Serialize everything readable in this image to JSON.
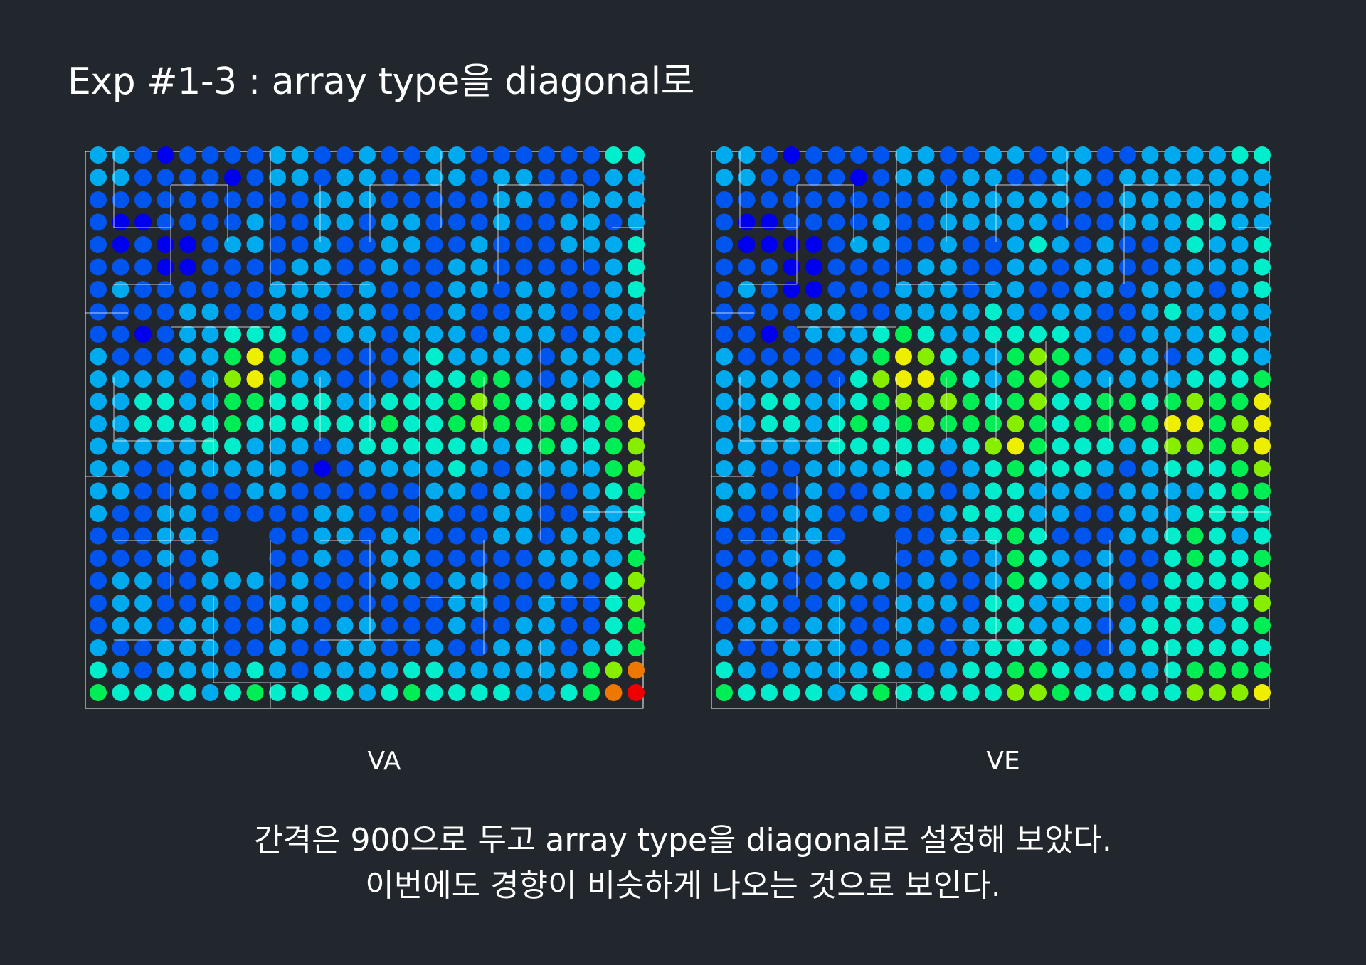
{
  "title": "Exp #1-3 : array type을 diagonal로",
  "panels": [
    {
      "caption": "VA",
      "map": "heatmap-va"
    },
    {
      "caption": "VE",
      "map": "heatmap-ve"
    }
  ],
  "description": {
    "line1": "간격은 900으로 두고 array type을 diagonal로 설정해 보았다.",
    "line2": "이번에도 경향이 비슷하게 나오는 것으로 보인다."
  },
  "colors": {
    "background": "#22272e",
    "text": "#ffffff",
    "scale": [
      "#0000ee",
      "#0055ee",
      "#00aaee",
      "#00eecc",
      "#00ee55",
      "#88ee00",
      "#eeee00",
      "#ee7700",
      "#ee0000"
    ]
  }
}
